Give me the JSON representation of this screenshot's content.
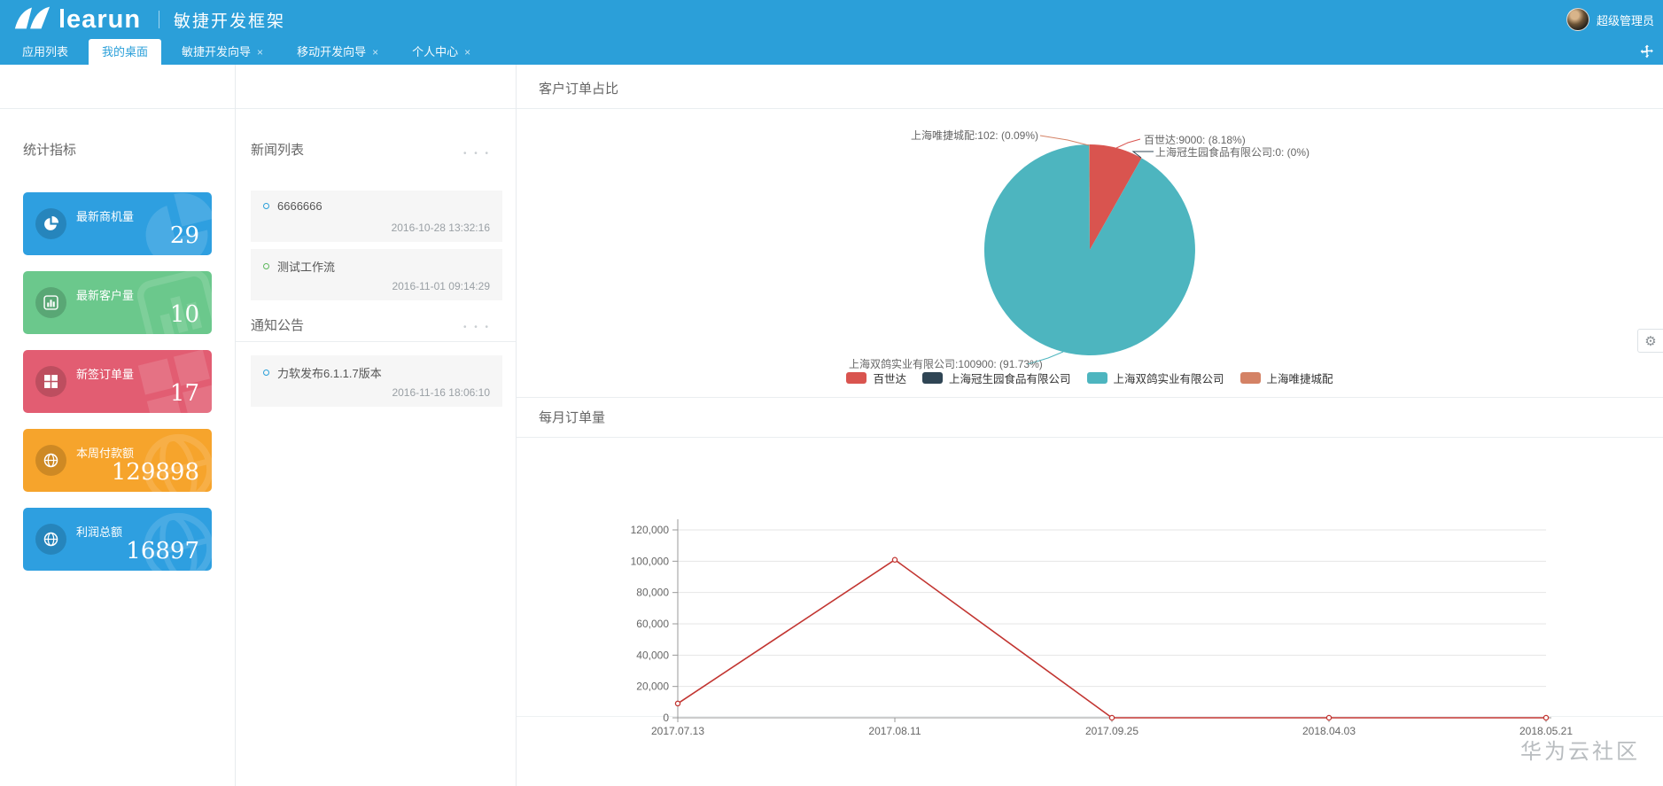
{
  "header": {
    "logo": "learun",
    "app_title": "敏捷开发框架",
    "username": "超级管理员"
  },
  "tabs": [
    {
      "label": "应用列表",
      "closable": false,
      "active": false
    },
    {
      "label": "我的桌面",
      "closable": false,
      "active": true
    },
    {
      "label": "敏捷开发向导",
      "closable": true,
      "active": false
    },
    {
      "label": "移动开发向导",
      "closable": true,
      "active": false
    },
    {
      "label": "个人中心",
      "closable": true,
      "active": false
    }
  ],
  "stats": {
    "title": "统计指标",
    "cards": [
      {
        "label": "最新商机量",
        "value": "29",
        "color": "#2e9fe0",
        "icon": "pie-chart-icon"
      },
      {
        "label": "最新客户量",
        "value": "10",
        "color": "#6bc88c",
        "icon": "bar-chart-icon"
      },
      {
        "label": "新签订单量",
        "value": "17",
        "color": "#e25d72",
        "icon": "windows-icon"
      },
      {
        "label": "本周付款额",
        "value": "129898",
        "color": "#f6a42c",
        "icon": "globe-icon"
      },
      {
        "label": "利润总额",
        "value": "16897",
        "color": "#2e9fe0",
        "icon": "globe-icon"
      }
    ]
  },
  "news": {
    "title": "新闻列表",
    "items": [
      {
        "title": "6666666",
        "time": "2016-10-28 13:32:16",
        "bullet_color": "#2a9fd9"
      },
      {
        "title": "测试工作流",
        "time": "2016-11-01 09:14:29",
        "bullet_color": "#5cb85c"
      }
    ]
  },
  "notice": {
    "title": "通知公告",
    "items": [
      {
        "title": "力软发布6.1.1.7版本",
        "time": "2016-11-16 18:06:10",
        "bullet_color": "#2a9fd9"
      }
    ]
  },
  "watermark": "华为云社区",
  "chart_data": [
    {
      "type": "pie",
      "title": "客户订单占比",
      "series": [
        {
          "name": "百世达",
          "value": 9000,
          "percent": "8.18%",
          "color": "#d9544f",
          "callout_label": "百世达:9000: (8.18%)"
        },
        {
          "name": "上海冠生园食品有限公司",
          "value": 0,
          "percent": "0%",
          "color": "#2f4554",
          "callout_label": "上海冠生园食品有限公司:0: (0%)"
        },
        {
          "name": "上海双鸽实业有限公司",
          "value": 100900,
          "percent": "91.73%",
          "color": "#4db5bf",
          "callout_label": "上海双鸽实业有限公司:100900: (91.73%)"
        },
        {
          "name": "上海唯捷城配",
          "value": 102,
          "percent": "0.09%",
          "color": "#d48265",
          "callout_label": "上海唯捷城配:102: (0.09%)"
        }
      ],
      "legend": [
        "百世达",
        "上海冠生园食品有限公司",
        "上海双鸽实业有限公司",
        "上海唯捷城配"
      ],
      "legend_position": "bottom"
    },
    {
      "type": "line",
      "title": "每月订单量",
      "x": [
        "2017.07.13",
        "2017.08.11",
        "2017.09.25",
        "2018.04.03",
        "2018.05.21"
      ],
      "series": [
        {
          "name": "每月订单量",
          "values": [
            9102,
            100900,
            0,
            0,
            0
          ],
          "color": "#c23531"
        }
      ],
      "ylim": [
        0,
        120000
      ],
      "yticks": [
        "120,000",
        "100,000",
        "80,000",
        "60,000",
        "40,000",
        "20,000",
        "0"
      ],
      "grid": true,
      "xlabel": "",
      "ylabel": ""
    }
  ]
}
